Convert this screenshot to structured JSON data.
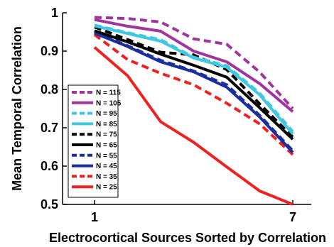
{
  "chart_data": {
    "type": "line",
    "xlabel": "Electrocortical Sources Sorted by Correlation",
    "ylabel": "Mean Temporal Correlation",
    "xlim": [
      1,
      7
    ],
    "ylim": [
      0.5,
      1
    ],
    "x": [
      1,
      2,
      3,
      4,
      5,
      6,
      7
    ],
    "xticks": [
      1,
      7
    ],
    "xtick_labels": [
      "1",
      "7"
    ],
    "yticks": [
      0.5,
      0.6,
      0.7,
      0.8,
      0.9,
      1
    ],
    "ytick_labels": [
      "0.5",
      "0.6",
      "0.7",
      "0.8",
      "0.9",
      "1"
    ],
    "grid": false,
    "legend_position": "bottom-left",
    "series": [
      {
        "name": "N = 115",
        "color": "#a0359e",
        "dash": true,
        "values": [
          0.988,
          0.985,
          0.976,
          0.932,
          0.918,
          0.845,
          0.75
        ]
      },
      {
        "name": "N = 105",
        "color": "#a0359e",
        "dash": false,
        "values": [
          0.982,
          0.965,
          0.952,
          0.9,
          0.872,
          0.815,
          0.742
        ]
      },
      {
        "name": "N = 95",
        "color": "#40c8e0",
        "dash": true,
        "values": [
          0.968,
          0.948,
          0.93,
          0.884,
          0.862,
          0.79,
          0.69
        ]
      },
      {
        "name": "N = 85",
        "color": "#40c8e0",
        "dash": false,
        "values": [
          0.966,
          0.946,
          0.926,
          0.882,
          0.858,
          0.786,
          0.684
        ]
      },
      {
        "name": "N = 75",
        "color": "#000000",
        "dash": true,
        "values": [
          0.963,
          0.93,
          0.897,
          0.89,
          0.852,
          0.762,
          0.676
        ]
      },
      {
        "name": "N = 65",
        "color": "#000000",
        "dash": false,
        "values": [
          0.953,
          0.924,
          0.892,
          0.863,
          0.832,
          0.752,
          0.67
        ]
      },
      {
        "name": "N = 55",
        "color": "#1a2f9c",
        "dash": true,
        "values": [
          0.95,
          0.914,
          0.876,
          0.848,
          0.812,
          0.732,
          0.64
        ]
      },
      {
        "name": "N = 45",
        "color": "#1a2f9c",
        "dash": false,
        "values": [
          0.947,
          0.912,
          0.872,
          0.846,
          0.806,
          0.728,
          0.636
        ]
      },
      {
        "name": "N = 35",
        "color": "#ee2222",
        "dash": true,
        "values": [
          0.943,
          0.878,
          0.842,
          0.812,
          0.764,
          0.71,
          0.63
        ]
      },
      {
        "name": "N = 25",
        "color": "#ee2222",
        "dash": false,
        "values": [
          0.91,
          0.836,
          0.716,
          0.662,
          0.598,
          0.535,
          0.5
        ]
      }
    ]
  }
}
